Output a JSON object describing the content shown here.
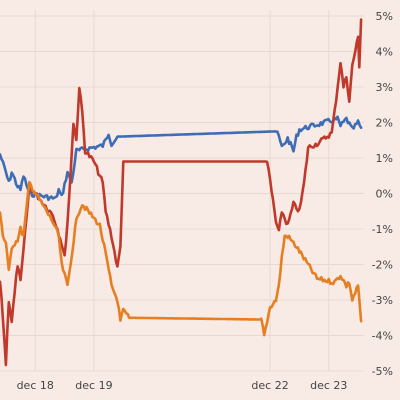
{
  "chart_data": {
    "type": "line",
    "title": "",
    "xlabel": "",
    "ylabel": "",
    "x_ticks": [
      {
        "label": "dec 18",
        "x": 18
      },
      {
        "label": "dec 19",
        "x": 19
      },
      {
        "label": "dec 22",
        "x": 22
      },
      {
        "label": "dec 23",
        "x": 23
      }
    ],
    "xlim": [
      17.4,
      23.6
    ],
    "y_ticks": [
      "5%",
      "4%",
      "3%",
      "2%",
      "1%",
      "0%",
      "-1%",
      "-2%",
      "-3%",
      "-4%",
      "-5%"
    ],
    "ylim": [
      -5,
      5
    ],
    "grid": true,
    "series": [
      {
        "color": "#3d6db5",
        "points": [
          [
            17.4,
            1.1
          ],
          [
            17.5,
            0.6
          ],
          [
            17.55,
            0.3
          ],
          [
            17.6,
            0.6
          ],
          [
            17.7,
            0.2
          ],
          [
            17.75,
            0.1
          ],
          [
            17.8,
            0.5
          ],
          [
            17.9,
            0.0
          ],
          [
            18.35,
            -0.15
          ],
          [
            18.4,
            0.1
          ],
          [
            18.45,
            -0.1
          ],
          [
            18.55,
            0.6
          ],
          [
            18.62,
            0.3
          ],
          [
            18.7,
            1.2
          ],
          [
            19.15,
            1.35
          ],
          [
            19.2,
            1.5
          ],
          [
            19.25,
            1.7
          ],
          [
            19.3,
            1.4
          ],
          [
            19.4,
            1.6
          ],
          [
            22.1,
            1.75
          ],
          [
            22.15,
            1.6
          ],
          [
            22.2,
            1.3
          ],
          [
            22.3,
            1.55
          ],
          [
            22.4,
            1.2
          ],
          [
            22.45,
            1.6
          ],
          [
            22.5,
            1.8
          ],
          [
            23.15,
            2.1
          ],
          [
            23.2,
            1.9
          ],
          [
            23.3,
            2.1
          ],
          [
            23.4,
            1.8
          ],
          [
            23.5,
            2.0
          ],
          [
            23.55,
            1.85
          ]
        ]
      },
      {
        "color": "#c0392b",
        "points": [
          [
            17.4,
            -2.5
          ],
          [
            17.45,
            -3.5
          ],
          [
            17.5,
            -4.8
          ],
          [
            17.55,
            -3.0
          ],
          [
            17.6,
            -3.6
          ],
          [
            17.7,
            -2.0
          ],
          [
            17.75,
            -2.5
          ],
          [
            17.9,
            0.2
          ],
          [
            18.3,
            -0.6
          ],
          [
            18.38,
            -1.0
          ],
          [
            18.45,
            -1.4
          ],
          [
            18.5,
            -1.8
          ],
          [
            18.55,
            -0.8
          ],
          [
            18.6,
            0.5
          ],
          [
            18.65,
            2.0
          ],
          [
            18.7,
            1.5
          ],
          [
            18.75,
            3.0
          ],
          [
            18.8,
            2.3
          ],
          [
            18.85,
            1.2
          ],
          [
            19.0,
            0.9
          ],
          [
            19.15,
            0.3
          ],
          [
            19.2,
            -0.5
          ],
          [
            19.3,
            -1.2
          ],
          [
            19.4,
            -2.1
          ],
          [
            19.45,
            -1.5
          ],
          [
            19.5,
            0.9
          ],
          [
            21.95,
            0.9
          ],
          [
            22.05,
            -0.2
          ],
          [
            22.1,
            -0.8
          ],
          [
            22.15,
            -1.1
          ],
          [
            22.2,
            -0.5
          ],
          [
            22.3,
            -0.9
          ],
          [
            22.4,
            -0.3
          ],
          [
            22.5,
            -0.5
          ],
          [
            22.58,
            0.3
          ],
          [
            22.65,
            1.3
          ],
          [
            22.8,
            1.4
          ],
          [
            23.05,
            1.7
          ],
          [
            23.1,
            2.3
          ],
          [
            23.15,
            3.0
          ],
          [
            23.2,
            3.7
          ],
          [
            23.25,
            3.0
          ],
          [
            23.3,
            3.3
          ],
          [
            23.35,
            2.6
          ],
          [
            23.4,
            3.6
          ],
          [
            23.45,
            4.0
          ],
          [
            23.5,
            4.4
          ],
          [
            23.52,
            3.6
          ],
          [
            23.55,
            4.9
          ]
        ]
      },
      {
        "color": "#e67e22",
        "points": [
          [
            17.4,
            -0.5
          ],
          [
            17.45,
            -1.2
          ],
          [
            17.5,
            -1.4
          ],
          [
            17.55,
            -2.2
          ],
          [
            17.6,
            -1.5
          ],
          [
            17.7,
            -1.3
          ],
          [
            17.75,
            -1.0
          ],
          [
            17.8,
            -1.2
          ],
          [
            17.9,
            0.3
          ],
          [
            18.3,
            -0.8
          ],
          [
            18.4,
            -1.2
          ],
          [
            18.45,
            -2.0
          ],
          [
            18.5,
            -2.3
          ],
          [
            18.55,
            -2.6
          ],
          [
            18.6,
            -2.0
          ],
          [
            18.68,
            -1.0
          ],
          [
            18.72,
            -0.6
          ],
          [
            18.8,
            -0.3
          ],
          [
            19.1,
            -0.9
          ],
          [
            19.2,
            -1.7
          ],
          [
            19.3,
            -2.6
          ],
          [
            19.4,
            -3.0
          ],
          [
            19.45,
            -3.6
          ],
          [
            19.5,
            -3.3
          ],
          [
            19.6,
            -3.5
          ],
          [
            21.85,
            -3.55
          ],
          [
            21.9,
            -4.0
          ],
          [
            21.95,
            -3.6
          ],
          [
            22.0,
            -3.2
          ],
          [
            22.1,
            -3.0
          ],
          [
            22.15,
            -2.6
          ],
          [
            22.2,
            -1.8
          ],
          [
            22.25,
            -1.2
          ],
          [
            22.3,
            -1.2
          ],
          [
            22.45,
            -1.5
          ],
          [
            22.8,
            -2.4
          ],
          [
            23.1,
            -2.5
          ],
          [
            23.2,
            -2.3
          ],
          [
            23.3,
            -2.6
          ],
          [
            23.35,
            -2.5
          ],
          [
            23.4,
            -3.0
          ],
          [
            23.45,
            -2.8
          ],
          [
            23.5,
            -2.6
          ],
          [
            23.55,
            -3.6
          ]
        ]
      }
    ]
  }
}
